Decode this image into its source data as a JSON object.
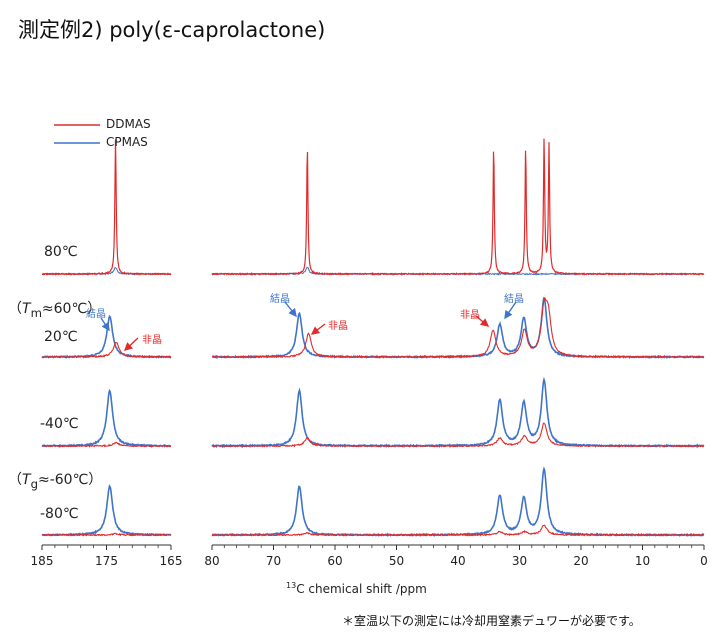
{
  "title": "測定例2) poly(ε-caprolactone)",
  "footnote": "＊室温以下の測定には冷却用窒素デュワーが必要です。",
  "colors": {
    "ddmas": "#e02b2b",
    "cpmas": "#3f74c8",
    "arrow_blue": "#3f74c8",
    "arrow_red": "#e02b2b"
  },
  "chart_data": {
    "type": "line",
    "title": "",
    "xlabel_sup": "13",
    "xlabel": "C chemical shift /ppm",
    "ylabel": "",
    "xaxis_reversed": true,
    "panels": [
      {
        "name": "carbonyl",
        "xlim": [
          185,
          165
        ],
        "ticks": [
          "185",
          "175",
          "165"
        ]
      },
      {
        "name": "aliphatic",
        "xlim": [
          80,
          0
        ],
        "ticks": [
          "80",
          "70",
          "60",
          "50",
          "40",
          "30",
          "20",
          "10",
          "0"
        ]
      }
    ],
    "legend": {
      "placement": "top-left",
      "entries": [
        "DDMAS",
        "CPMAS"
      ]
    },
    "rows": [
      {
        "temp": "80℃",
        "note": "",
        "ddmas_peaks": [
          [
            173.6,
            1.0
          ],
          [
            64.5,
            0.95
          ],
          [
            34.2,
            0.95
          ],
          [
            29.0,
            0.95
          ],
          [
            26.0,
            1.0
          ],
          [
            25.2,
            0.95
          ]
        ],
        "cpmas_peaks": [
          [
            173.6,
            0.05
          ],
          [
            64.5,
            0.05
          ]
        ]
      },
      {
        "temp": "20℃",
        "note_prefix": "（",
        "note_var": "T",
        "note_sub": "m",
        "note_suffix": "≈60℃）",
        "annotations": [
          {
            "text": "結晶",
            "color": "cpmas",
            "panel": "carbonyl",
            "x": 174.5
          },
          {
            "text": "非晶",
            "color": "ddmas",
            "panel": "carbonyl",
            "x": 173.5
          },
          {
            "text": "結晶",
            "color": "cpmas",
            "panel": "aliphatic",
            "x": 65.8
          },
          {
            "text": "非晶",
            "color": "ddmas",
            "panel": "aliphatic",
            "x": 64.2
          },
          {
            "text": "非晶",
            "color": "ddmas",
            "panel": "aliphatic",
            "x": 34.3
          },
          {
            "text": "結晶",
            "color": "cpmas",
            "panel": "aliphatic",
            "x": 33.2
          }
        ],
        "ddmas_peaks": [
          [
            173.5,
            0.25
          ],
          [
            64.3,
            0.4
          ],
          [
            34.3,
            0.45
          ],
          [
            29.2,
            0.45
          ],
          [
            26.0,
            0.75
          ],
          [
            25.3,
            0.6
          ]
        ],
        "cpmas_peaks": [
          [
            174.5,
            0.7
          ],
          [
            65.8,
            0.75
          ],
          [
            33.2,
            0.55
          ],
          [
            29.3,
            0.65
          ],
          [
            26.0,
            1.0
          ]
        ]
      },
      {
        "temp": "-40℃",
        "note": "",
        "ddmas_peaks": [
          [
            173.5,
            0.05
          ],
          [
            64.5,
            0.12
          ],
          [
            33.2,
            0.12
          ],
          [
            29.2,
            0.15
          ],
          [
            26.0,
            0.35
          ]
        ],
        "cpmas_peaks": [
          [
            174.5,
            0.85
          ],
          [
            65.8,
            0.85
          ],
          [
            33.2,
            0.7
          ],
          [
            29.3,
            0.65
          ],
          [
            26.0,
            1.0
          ]
        ]
      },
      {
        "temp": "-80℃",
        "note_prefix": "（",
        "note_var": "T",
        "note_sub": "g",
        "note_suffix": "≈-60℃）",
        "ddmas_peaks": [
          [
            173.5,
            0.02
          ],
          [
            64.5,
            0.03
          ],
          [
            33.2,
            0.05
          ],
          [
            29.2,
            0.05
          ],
          [
            26.0,
            0.15
          ]
        ],
        "cpmas_peaks": [
          [
            174.5,
            0.75
          ],
          [
            65.8,
            0.75
          ],
          [
            33.2,
            0.6
          ],
          [
            29.3,
            0.55
          ],
          [
            26.0,
            1.0
          ]
        ]
      }
    ]
  }
}
